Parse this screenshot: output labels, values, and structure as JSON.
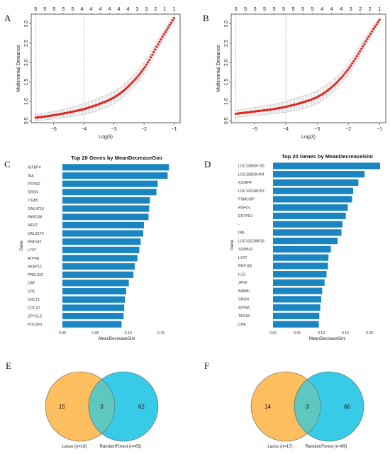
{
  "panels": {
    "A": "A",
    "B": "B",
    "C": "C",
    "D": "D",
    "E": "E",
    "F": "F"
  },
  "chart_data": [
    {
      "id": "A",
      "type": "line",
      "xlabel": "Log(λ)",
      "ylabel": "Multinomial Deviance",
      "xlim": [
        -5.75,
        -0.8
      ],
      "ylim": [
        0.45,
        3.25
      ],
      "xticks": [
        -5,
        -4,
        -3,
        -2,
        -1
      ],
      "yticks": [
        0.5,
        1.0,
        1.5,
        2.0,
        2.5,
        3.0
      ],
      "top_labels": [
        "5",
        "5",
        "5",
        "5",
        "5",
        "4",
        "4",
        "4",
        "4",
        "4",
        "4",
        "3",
        "3",
        "2",
        "1",
        "1"
      ],
      "vlines": [
        -5.6,
        -4.0
      ],
      "curve": {
        "x": [
          -5.6,
          -5.2,
          -4.8,
          -4.4,
          -4.0,
          -3.6,
          -3.2,
          -3.0,
          -2.8,
          -2.6,
          -2.4,
          -2.2,
          -2.0,
          -1.8,
          -1.6,
          -1.4,
          -1.2,
          -1.0
        ],
        "y": [
          0.58,
          0.62,
          0.67,
          0.73,
          0.8,
          0.9,
          1.02,
          1.1,
          1.2,
          1.33,
          1.48,
          1.65,
          1.85,
          2.1,
          2.38,
          2.65,
          2.9,
          3.15
        ],
        "err": [
          0.08,
          0.09,
          0.1,
          0.12,
          0.14,
          0.16,
          0.16,
          0.16,
          0.16,
          0.16,
          0.15,
          0.15,
          0.15,
          0.15,
          0.14,
          0.12,
          0.1,
          0.07
        ]
      }
    },
    {
      "id": "B",
      "type": "line",
      "xlabel": "Log(λ)",
      "ylabel": "Multinomial Deviance",
      "xlim": [
        -5.75,
        -0.8
      ],
      "ylim": [
        0.45,
        3.25
      ],
      "xticks": [
        -5,
        -4,
        -3,
        -2,
        -1
      ],
      "yticks": [
        0.5,
        1.0,
        1.5,
        2.0,
        2.5,
        3.0
      ],
      "top_labels": [
        "5",
        "5",
        "5",
        "5",
        "5",
        "5",
        "5",
        "5",
        "5",
        "4",
        "4",
        "4",
        "3",
        "2",
        "2",
        "1"
      ],
      "vlines": [
        -5.6,
        -4.0
      ],
      "curve": {
        "x": [
          -5.6,
          -5.2,
          -4.8,
          -4.4,
          -4.0,
          -3.6,
          -3.2,
          -3.0,
          -2.8,
          -2.6,
          -2.4,
          -2.2,
          -2.0,
          -1.8,
          -1.6,
          -1.4,
          -1.2,
          -1.0
        ],
        "y": [
          0.68,
          0.72,
          0.76,
          0.8,
          0.86,
          0.94,
          1.04,
          1.11,
          1.2,
          1.32,
          1.46,
          1.63,
          1.83,
          2.07,
          2.33,
          2.6,
          2.86,
          3.1
        ],
        "err": [
          0.09,
          0.1,
          0.11,
          0.12,
          0.14,
          0.16,
          0.17,
          0.17,
          0.17,
          0.17,
          0.16,
          0.16,
          0.16,
          0.15,
          0.14,
          0.12,
          0.1,
          0.07
        ]
      }
    },
    {
      "id": "C",
      "type": "bar",
      "orientation": "horizontal",
      "title": "Top 20 Genes by MeanDecreaseGini",
      "xlabel": "MeanDecreaseGini",
      "ylabel": "Gene",
      "xlim": [
        0,
        0.165
      ],
      "xticks": [
        0.0,
        0.05,
        0.1,
        0.15
      ],
      "xtick_labels": [
        "0.00",
        "0.05",
        "0.10",
        "0.15"
      ],
      "color": "#1a85c0",
      "categories": [
        "IGFBP4",
        "INA",
        "PTPRD",
        "SRGN",
        "ITGB5",
        "GALNT16",
        "PARD3B",
        "MEST",
        "GAL3ST4",
        "RNF183",
        "LYST",
        "ATP9A",
        "AKAP12",
        "PRELID2",
        "OAF",
        "CPE",
        "OXCT1",
        "CDC20",
        "DPYSL3",
        "POU3F3"
      ],
      "values": [
        0.162,
        0.16,
        0.145,
        0.143,
        0.133,
        0.132,
        0.131,
        0.124,
        0.123,
        0.119,
        0.117,
        0.114,
        0.11,
        0.108,
        0.101,
        0.097,
        0.095,
        0.094,
        0.093,
        0.09
      ]
    },
    {
      "id": "D",
      "type": "bar",
      "orientation": "horizontal",
      "title": "Top 20 Genes by MeanDecreaseGini",
      "xlabel": "MeanDecreaseGini",
      "ylabel": "Gene",
      "xlim": [
        0,
        0.225
      ],
      "xticks": [
        0.0,
        0.05,
        0.1,
        0.15,
        0.2
      ],
      "xtick_labels": [
        "0.00",
        "0.05",
        "0.10",
        "0.15",
        "0.20"
      ],
      "color": "#1a85c0",
      "categories": [
        "LOC108636730",
        "LOC108636404",
        "KCNIP4",
        "LOC102188153",
        "PSMC3IP",
        "RSPO1",
        "ENTPD1",
        "-",
        "INA",
        "LOC102188618",
        "SORBS2",
        "LYST",
        "RNF183",
        "IL33",
        "JPH2",
        "BAMBI",
        "SRGN",
        "ATP9A",
        "TBX18",
        "CPE"
      ],
      "values": [
        0.222,
        0.19,
        0.177,
        0.166,
        0.164,
        0.155,
        0.151,
        0.144,
        0.142,
        0.134,
        0.12,
        0.115,
        0.114,
        0.111,
        0.107,
        0.102,
        0.1,
        0.098,
        0.096,
        0.095
      ]
    },
    {
      "id": "E",
      "type": "venn",
      "sets": [
        {
          "label": "Lasso (n=18)",
          "only": 15,
          "color": "#fdbe5f"
        },
        {
          "label": "RandomForest (n=65)",
          "only": 62,
          "color": "#38cbe8"
        }
      ],
      "intersection": 3,
      "intersection_color": "#5ec7c0"
    },
    {
      "id": "F",
      "type": "venn",
      "sets": [
        {
          "label": "Lasso (n=17)",
          "only": 14,
          "color": "#fdbe5f"
        },
        {
          "label": "RandomForest (n=69)",
          "only": 66,
          "color": "#38cbe8"
        }
      ],
      "intersection": 3,
      "intersection_color": "#5ec7c0"
    }
  ]
}
